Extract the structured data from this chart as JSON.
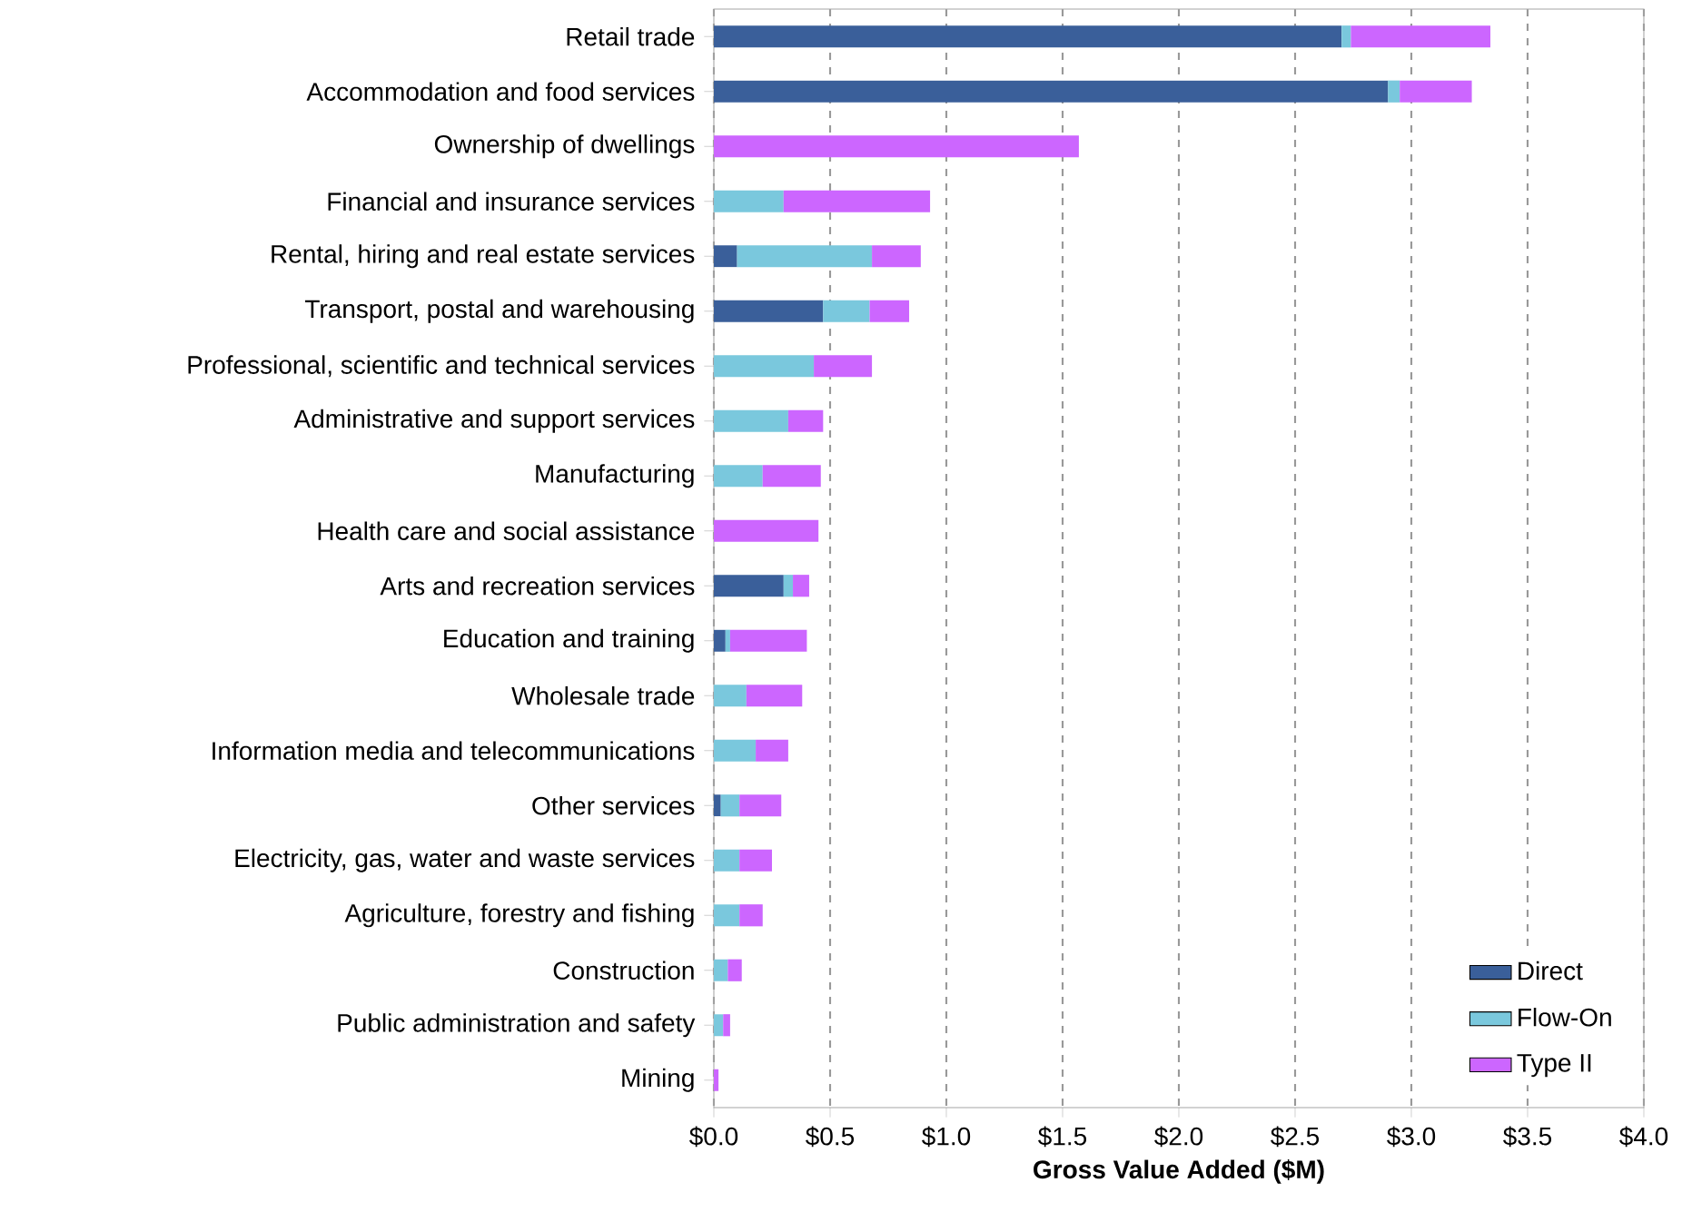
{
  "chart_data": {
    "type": "bar",
    "orientation": "horizontal",
    "stacked": true,
    "categories": [
      "Retail trade",
      "Accommodation and food services",
      "Ownership of dwellings",
      "Financial and insurance services",
      "Rental, hiring and real estate services",
      "Transport, postal and warehousing",
      "Professional, scientific and technical services",
      "Administrative and support services",
      "Manufacturing",
      "Health care and social assistance",
      "Arts and recreation services",
      "Education and training",
      "Wholesale trade",
      "Information media and telecommunications",
      "Other services",
      "Electricity, gas, water and waste services",
      "Agriculture, forestry and fishing",
      "Construction",
      "Public administration and safety",
      "Mining"
    ],
    "series": [
      {
        "name": "Direct",
        "color": "#3a5f9a",
        "values": [
          2.7,
          2.9,
          null,
          null,
          0.1,
          0.47,
          null,
          null,
          null,
          null,
          0.3,
          0.05,
          null,
          null,
          0.03,
          null,
          null,
          null,
          null,
          null
        ]
      },
      {
        "name": "Flow-On",
        "color": "#7ac8dd",
        "values": [
          0.04,
          0.05,
          null,
          0.3,
          0.58,
          0.2,
          0.43,
          0.32,
          0.21,
          null,
          0.04,
          0.02,
          0.14,
          0.18,
          0.08,
          0.11,
          0.11,
          0.06,
          0.04,
          null
        ]
      },
      {
        "name": "Type II",
        "color": "#cc66ff",
        "values": [
          0.6,
          0.31,
          1.57,
          0.63,
          0.21,
          0.17,
          0.25,
          0.15,
          0.25,
          0.45,
          0.07,
          0.33,
          0.24,
          0.14,
          0.18,
          0.14,
          0.1,
          0.06,
          0.03,
          0.02
        ]
      }
    ],
    "xlabel": "Gross Value Added ($M)",
    "xlim": [
      0,
      4.0
    ],
    "xticks": [
      {
        "value": 0,
        "label": "$0.0"
      },
      {
        "value": 0.5,
        "label": "$0.5"
      },
      {
        "value": 1.0,
        "label": "$1.0"
      },
      {
        "value": 1.5,
        "label": "$1.5"
      },
      {
        "value": 2.0,
        "label": "$2.0"
      },
      {
        "value": 2.5,
        "label": "$2.5"
      },
      {
        "value": 3.0,
        "label": "$3.0"
      },
      {
        "value": 3.5,
        "label": "$3.5"
      },
      {
        "value": 4.0,
        "label": "$4.0"
      }
    ],
    "grid": "x",
    "legend": "bottom right"
  }
}
